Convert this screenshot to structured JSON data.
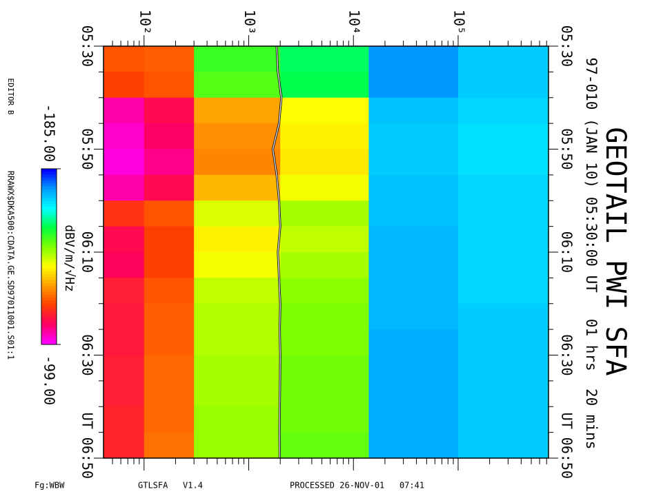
{
  "chart_data": {
    "type": "heatmap",
    "title": "GEOTAIL PWI SFA",
    "subtitle": "97-010 (JAN 10) 05:30:00 UT   01 hrs  20 mins",
    "colorbar_label": "dBV/m/√Hz",
    "annotations": [
      "EDITOR B",
      "RRAWX$DKA500:CDATA.GE.SD97011001.S01:1",
      "Fg:WBW",
      "GTLSFA   V1.4",
      "PROCESSED 26-NOV-01   07:41"
    ],
    "xscale": "log",
    "xlim": [
      41,
      730000
    ],
    "xticks": [
      {
        "value": 100,
        "label": "10²"
      },
      {
        "value": 1000,
        "label": "10³"
      },
      {
        "value": 10000,
        "label": "10⁴"
      },
      {
        "value": 100000,
        "label": "10⁵"
      }
    ],
    "xminor": [
      50,
      60,
      70,
      80,
      90,
      200,
      300,
      400,
      500,
      600,
      700,
      800,
      900,
      2000,
      3000,
      4000,
      5000,
      6000,
      7000,
      8000,
      9000,
      20000,
      30000,
      40000,
      50000,
      60000,
      70000,
      80000,
      90000,
      200000,
      300000,
      400000,
      500000,
      600000,
      700000
    ],
    "ylim": [
      330,
      410
    ],
    "yticks": [
      {
        "value": 330,
        "label": "05:30"
      },
      {
        "value": 350,
        "label": "05:50"
      },
      {
        "value": 370,
        "label": "06:10"
      },
      {
        "value": 390,
        "label": "06:30"
      },
      {
        "value": 410,
        "label": "UT 06:50"
      }
    ],
    "yminor": [
      335,
      340,
      345,
      355,
      360,
      365,
      375,
      380,
      385,
      395,
      400,
      405
    ],
    "x_bins": [
      41,
      100,
      300,
      2000,
      14000,
      100000,
      730000
    ],
    "y_bins": [
      330,
      335,
      340,
      345,
      350,
      355,
      360,
      365,
      370,
      375,
      380,
      385,
      390,
      395,
      400,
      405,
      410
    ],
    "values": [
      [
        -120,
        -121,
        -152,
        -158,
        -176,
        -171
      ],
      [
        -118,
        -120,
        -150,
        -157,
        -176,
        -171
      ],
      [
        -104,
        -110,
        -128,
        -137,
        -172,
        -170
      ],
      [
        -102,
        -108,
        -126,
        -136,
        -171,
        -169
      ],
      [
        -101,
        -106,
        -125,
        -135,
        -171,
        -169
      ],
      [
        -104,
        -110,
        -130,
        -138,
        -172,
        -170
      ],
      [
        -116,
        -120,
        -140,
        -144,
        -172,
        -170
      ],
      [
        -110,
        -118,
        -136,
        -142,
        -173,
        -170
      ],
      [
        -109,
        -118,
        -138,
        -144,
        -173,
        -170
      ],
      [
        -113,
        -120,
        -142,
        -146,
        -173,
        -170
      ],
      [
        -112,
        -121,
        -143,
        -147,
        -173,
        -171
      ],
      [
        -112,
        -121,
        -143,
        -147,
        -174,
        -171
      ],
      [
        -113,
        -122,
        -144,
        -148,
        -174,
        -171
      ],
      [
        -113,
        -122,
        -144,
        -148,
        -174,
        -171
      ],
      [
        -114,
        -122,
        -145,
        -148,
        -174,
        -171
      ],
      [
        -114,
        -123,
        -145,
        -149,
        -174,
        -171
      ]
    ],
    "clim": [
      {
        "value": -185,
        "label": "-185.00"
      },
      {
        "value": -99,
        "label": "-99.00"
      }
    ],
    "colormap": [
      "#0000ff",
      "#00a0ff",
      "#00ffff",
      "#00ff40",
      "#80ff00",
      "#ffff00",
      "#ffa000",
      "#ff4000",
      "#ff0060",
      "#ff00ff"
    ],
    "overlay": {
      "color": "#ffffff",
      "x": [
        1850,
        1900,
        2050,
        1950,
        1700,
        1850,
        1950,
        2000,
        1900,
        1950,
        2000,
        1980,
        2000,
        1990,
        1980,
        1970,
        1980
      ],
      "y": [
        330,
        335,
        340,
        345,
        350,
        355,
        360,
        365,
        370,
        375,
        380,
        385,
        390,
        395,
        400,
        405,
        410
      ]
    }
  }
}
